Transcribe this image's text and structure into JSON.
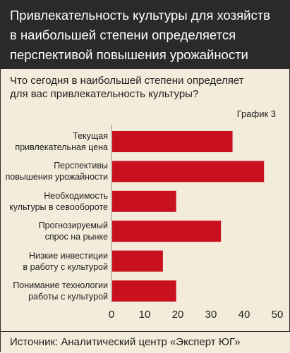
{
  "header": {
    "title_lines": [
      "Привлекательность культуры для хозяйств",
      "в наибольшей степени определяется",
      "перспективой повышения урожайности"
    ]
  },
  "question_lines": [
    "Что сегодня в наибольшей степени определяет",
    "для вас привлекательность культуры?"
  ],
  "chart_number": "График 3",
  "source": "Источник: Аналитический центр «Эксперт ЮГ»",
  "colors": {
    "bar": "#c8101e",
    "header_bg": "#2a2a2a",
    "background": "#f4ecdb"
  },
  "chart_data": {
    "type": "bar",
    "orientation": "horizontal",
    "categories": [
      [
        "Текущая",
        "привлекательная цена"
      ],
      [
        "Перспективы",
        "повышения урожайности"
      ],
      [
        "Необходимость",
        "культуры в севообороте"
      ],
      [
        "Прогнозируемый",
        "спрос на рынке"
      ],
      [
        "Низкие инвестиции",
        "в работу с культурой"
      ],
      [
        "Понимание технологии",
        "работы с культурой"
      ]
    ],
    "values": [
      36.5,
      46,
      19.5,
      33,
      15.5,
      19.5
    ],
    "xlim": [
      0,
      50
    ],
    "xticks": [
      "0",
      "10",
      "20",
      "30",
      "40",
      "50"
    ],
    "grid": false,
    "legend": "none"
  }
}
